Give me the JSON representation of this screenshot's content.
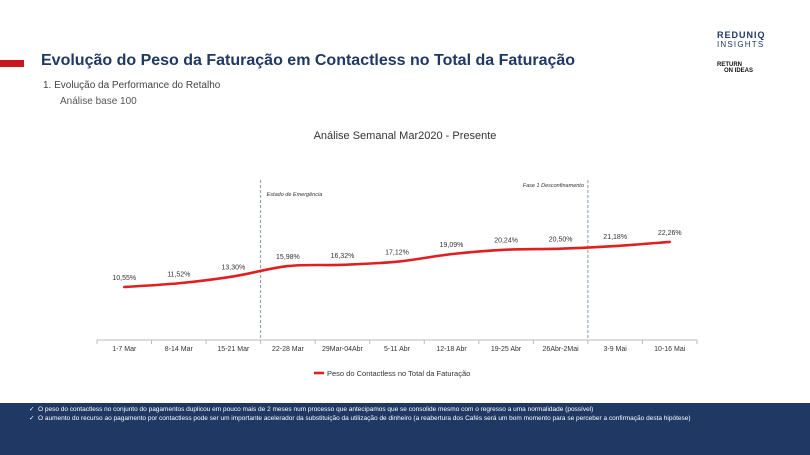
{
  "header": {
    "title": "Evolução do Peso da Faturação em Contactless no Total da Faturação",
    "subtitle": "1.  Evolução da Performance do Retalho",
    "subtitle2": "Análise base 100"
  },
  "logos": {
    "top_line1": "REDUNIQ",
    "top_line2": "INSIGHTS",
    "bottom_line1": "RETURN",
    "bottom_line2": "ON IDEAS"
  },
  "colors": {
    "accent": "#c8171e",
    "navy": "#1f3864",
    "line": "#e02020"
  },
  "chart_data": {
    "type": "line",
    "title": "Análise Semanal Mar2020 - Presente",
    "categories": [
      "1-7 Mar",
      "8-14 Mar",
      "15-21 Mar",
      "22-28 Mar",
      "29Mar-04Abr",
      "5-11 Abr",
      "12-18 Abr",
      "19-25 Abr",
      "26Abr-2Mai",
      "3-9 Mai",
      "10-16 Mai"
    ],
    "series": [
      {
        "name": "Peso do Contactless no Total da Faturação",
        "values": [
          10.55,
          11.52,
          13.3,
          15.98,
          16.32,
          17.12,
          19.09,
          20.24,
          20.5,
          21.18,
          22.26
        ],
        "labels": [
          "10,55%",
          "11,52%",
          "13,30%",
          "15,98%",
          "16,32%",
          "17,12%",
          "19,09%",
          "20,24%",
          "20,50%",
          "21,18%",
          "22,26%"
        ]
      }
    ],
    "annotations": [
      {
        "text": "Estado de Emergência",
        "between": [
          "15-21 Mar",
          "22-28 Mar"
        ]
      },
      {
        "text": "Fase 1 Desconfinamento",
        "between": [
          "26Abr-2Mai",
          "3-9 Mai"
        ]
      }
    ],
    "ylim": [
      0,
      30
    ],
    "legend": "bottom",
    "grid": false
  },
  "footer": {
    "bullets": [
      "O peso do contactless no conjunto do pagamentos duplicou em pouco mais de 2 meses num processo que antecipamos que se consolide mesmo com o regresso a uma normalidade (possível)",
      "O aumento do recurso ao pagamento por contactless pode ser um importante acelerador da substituição da utilização de dinheiro (a reabertura dos Cafés será um bom momento para se perceber a confirmação desta hipótese)"
    ]
  }
}
